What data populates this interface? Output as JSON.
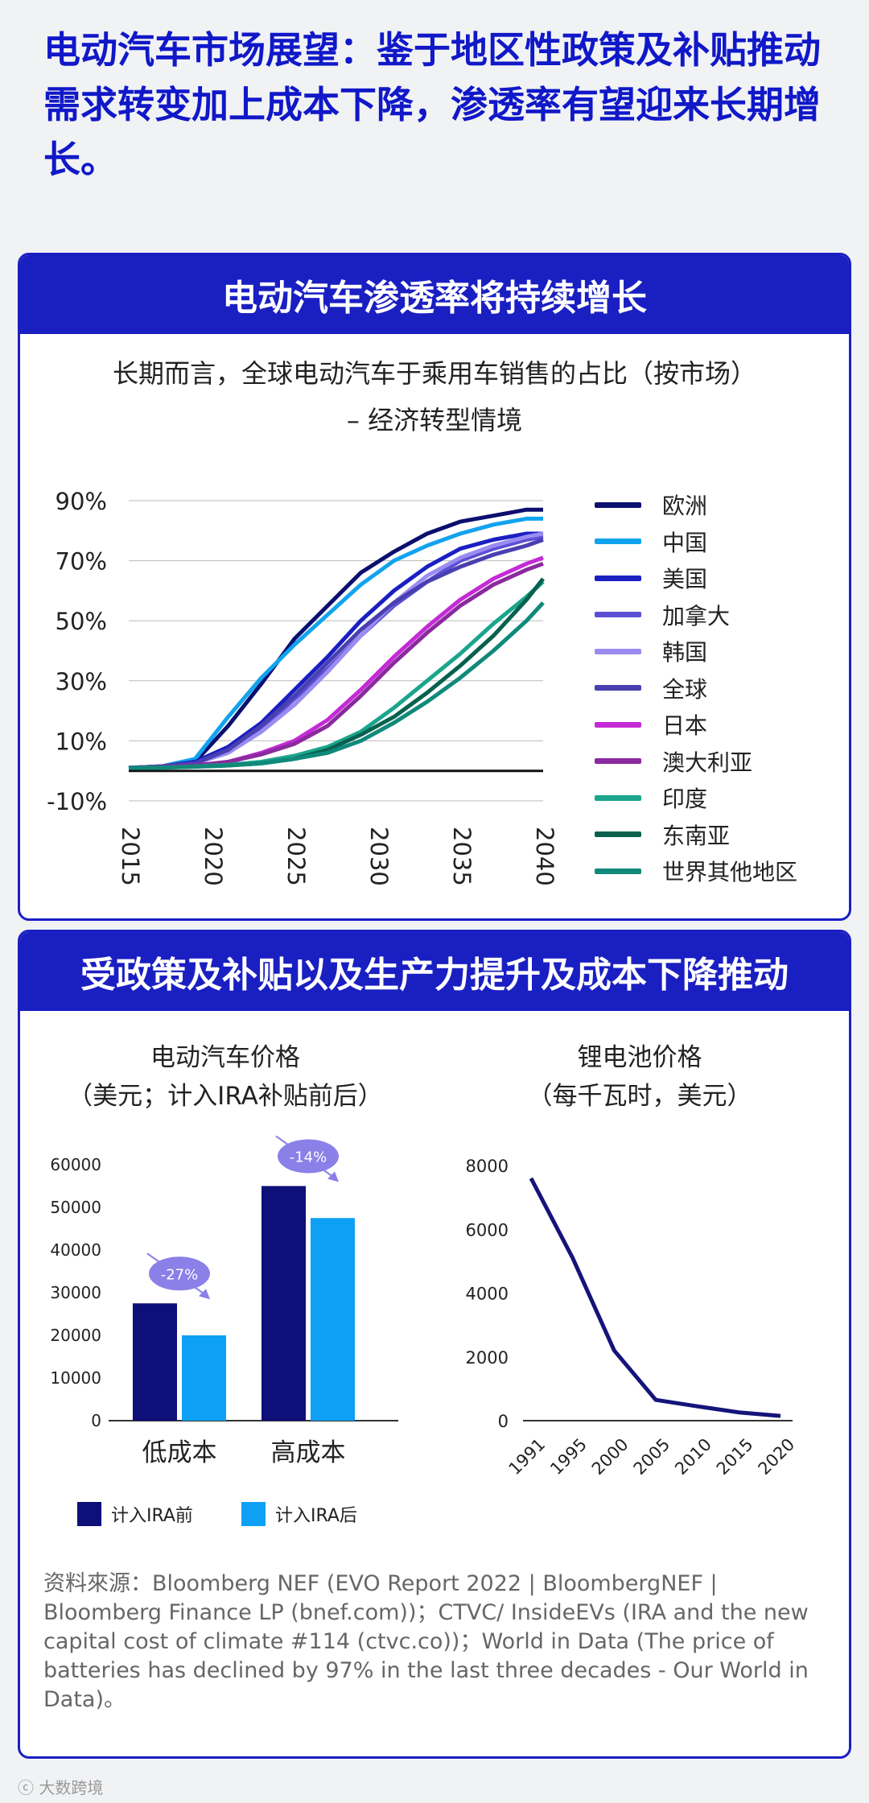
{
  "headline": "电动汽车市场展望：鉴于地区性政策及补贴推动需求转变加上成本下降，渗透率有望迎来长期增长。",
  "panel1": {
    "header": "电动汽车渗透率将持续增长",
    "title_line1": "长期而言，全球电动汽车于乘用车销售的占比（按市场）",
    "title_line2": "– 经济转型情境"
  },
  "panel2": {
    "header": "受政策及补贴以及生产力提升及成本下降推动",
    "left_title_1": "电动汽车价格",
    "left_title_2": "（美元；计入IRA补贴前后）",
    "right_title_1": "锂电池价格",
    "right_title_2": "（每千瓦时，美元）"
  },
  "colors": {
    "brand": "#1a1fc2",
    "headline": "#1018c8",
    "bar_before": "#0e0f78",
    "bar_after": "#0ea0f4",
    "badge": "#8b7fe8"
  },
  "source": "资料來源：Bloomberg NEF (EVO Report 2022 | BloombergNEF | Bloomberg Finance LP (bnef.com))；CTVC/ InsideEVs (IRA and the new capital cost of climate #114 (ctvc.co))；World in Data (The price of batteries has declined by 97% in the last three decades - Our World in Data)。",
  "watermark": "大数跨境",
  "chart_data": [
    {
      "type": "line",
      "title": "长期而言，全球电动汽车于乘用车销售的占比（按市场）– 经济转型情境",
      "x": [
        2015,
        2017,
        2019,
        2021,
        2023,
        2025,
        2027,
        2029,
        2031,
        2033,
        2035,
        2037,
        2039,
        2040
      ],
      "x_ticks": [
        "2015",
        "2020",
        "2025",
        "2030",
        "2035",
        "2040"
      ],
      "y_ticks": [
        "90%",
        "70%",
        "50%",
        "30%",
        "10%",
        "-10%"
      ],
      "ylim": [
        -10,
        90
      ],
      "series": [
        {
          "name": "欧洲",
          "color": "#0b0f6e",
          "values": [
            1,
            1.5,
            3,
            15,
            29,
            44,
            55,
            66,
            73,
            79,
            83,
            85,
            87,
            87
          ]
        },
        {
          "name": "中国",
          "color": "#12a3ee",
          "values": [
            1,
            1.5,
            4,
            18,
            31,
            42,
            52,
            62,
            70,
            75,
            79,
            82,
            84,
            84
          ]
        },
        {
          "name": "美国",
          "color": "#1a1fc2",
          "values": [
            1,
            1.5,
            3,
            8,
            16,
            27,
            38,
            50,
            60,
            68,
            74,
            77,
            79,
            79
          ]
        },
        {
          "name": "加拿大",
          "color": "#5b4fd6",
          "values": [
            1,
            1.5,
            2.5,
            7,
            14,
            24,
            34,
            45,
            55,
            63,
            70,
            74,
            77,
            78
          ]
        },
        {
          "name": "韩国",
          "color": "#9a8cf0",
          "values": [
            1,
            1.5,
            2.5,
            6,
            13,
            22,
            33,
            45,
            56,
            65,
            71,
            75,
            78,
            79
          ]
        },
        {
          "name": "全球",
          "color": "#4a3fb0",
          "values": [
            1,
            1.5,
            2.5,
            7,
            15,
            25,
            36,
            47,
            56,
            63,
            68,
            72,
            75,
            77
          ]
        },
        {
          "name": "日本",
          "color": "#c42ad6",
          "values": [
            1,
            1.2,
            1.8,
            3,
            6,
            10,
            17,
            27,
            38,
            48,
            57,
            64,
            69,
            71
          ]
        },
        {
          "name": "澳大利亚",
          "color": "#8a2a9e",
          "values": [
            1,
            1.2,
            1.8,
            3,
            5.5,
            9,
            15,
            25,
            36,
            46,
            55,
            62,
            67,
            69
          ]
        },
        {
          "name": "印度",
          "color": "#1aa58c",
          "values": [
            1,
            1.1,
            1.5,
            2,
            3,
            5,
            8,
            13,
            21,
            30,
            39,
            49,
            58,
            63
          ]
        },
        {
          "name": "东南亚",
          "color": "#08614e",
          "values": [
            1,
            1.1,
            1.4,
            1.8,
            2.5,
            4,
            7,
            12,
            18,
            26,
            35,
            45,
            57,
            64
          ]
        },
        {
          "name": "世界其他地区",
          "color": "#10897a",
          "values": [
            1,
            1.1,
            1.4,
            1.8,
            2.5,
            4,
            6,
            10,
            16,
            23,
            31,
            40,
            50,
            56
          ]
        }
      ]
    },
    {
      "type": "bar",
      "title": "电动汽车价格（美元；计入IRA补贴前后）",
      "categories": [
        "低成本",
        "高成本"
      ],
      "series": [
        {
          "name": "计入IRA前",
          "values": [
            27500,
            55000
          ]
        },
        {
          "name": "计入IRA后",
          "values": [
            20000,
            47500
          ]
        }
      ],
      "ylim": [
        0,
        60000
      ],
      "y_ticks": [
        "0",
        "10000",
        "20000",
        "30000",
        "40000",
        "50000",
        "60000"
      ],
      "annotations": [
        "-27%",
        "-14%"
      ]
    },
    {
      "type": "line",
      "title": "锂电池价格（每千瓦时，美元）",
      "x": [
        1991,
        1995,
        2000,
        2005,
        2010,
        2015,
        2020
      ],
      "values": [
        7600,
        5100,
        2200,
        650,
        450,
        260,
        150
      ],
      "x_ticks": [
        "1991",
        "1995",
        "2000",
        "2005",
        "2010",
        "2015",
        "2020"
      ],
      "y_ticks": [
        "0",
        "2000",
        "4000",
        "6000",
        "8000"
      ],
      "ylim": [
        0,
        8000
      ]
    }
  ]
}
